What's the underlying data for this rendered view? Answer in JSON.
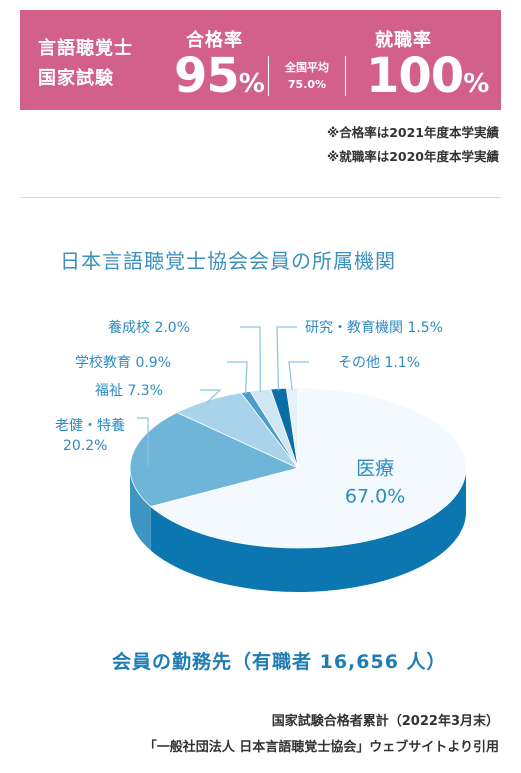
{
  "banner": {
    "exam_line1": "言語聴覚士",
    "exam_line2": "国家試験",
    "pass_label": "合格率",
    "pass_value": "95",
    "percent": "%",
    "national_label": "全国平均",
    "national_value": "75.0%",
    "employ_label": "就職率",
    "employ_value": "100",
    "color": "#d2608a"
  },
  "notes": {
    "pass_note": "※合格率は2021年度本学実績",
    "employ_note": "※就職率は2020年度本学実績"
  },
  "chart_data": {
    "type": "pie",
    "title": "日本言語聴覚士協会会員の所属機関",
    "subtitle": "会員の勤務先（有職者 16,656 人）",
    "slices": [
      {
        "name": "医療",
        "value": 67.0,
        "label": "67.0%",
        "color": "#f3f9fc",
        "side": "#0b76b0"
      },
      {
        "name": "老健・特養",
        "value": 20.2,
        "label": "20.2%",
        "color": "#6fb5d8",
        "side": "#3f95c2"
      },
      {
        "name": "福祉",
        "value": 7.3,
        "label": "7.3%",
        "color": "#a9d3ea",
        "side": "#6fb5d8"
      },
      {
        "name": "学校教育",
        "value": 0.9,
        "label": "0.9%",
        "color": "#4c9fcb",
        "side": "#2b82b3"
      },
      {
        "name": "養成校",
        "value": 2.0,
        "label": "2.0%",
        "color": "#cfe6f3",
        "side": "#8cc3e1"
      },
      {
        "name": "研究・教育機関",
        "value": 1.5,
        "label": "1.5%",
        "color": "#0b6ea6",
        "side": "#085a88"
      },
      {
        "name": "その他",
        "value": 1.1,
        "label": "1.1%",
        "color": "#e6f2f9",
        "side": "#b9dbee"
      }
    ]
  },
  "source": {
    "line1": "国家試験合格者累計（2022年3月末）",
    "line2": "「一般社団法人 日本言語聴覚士協会」ウェブサイトより引用"
  }
}
